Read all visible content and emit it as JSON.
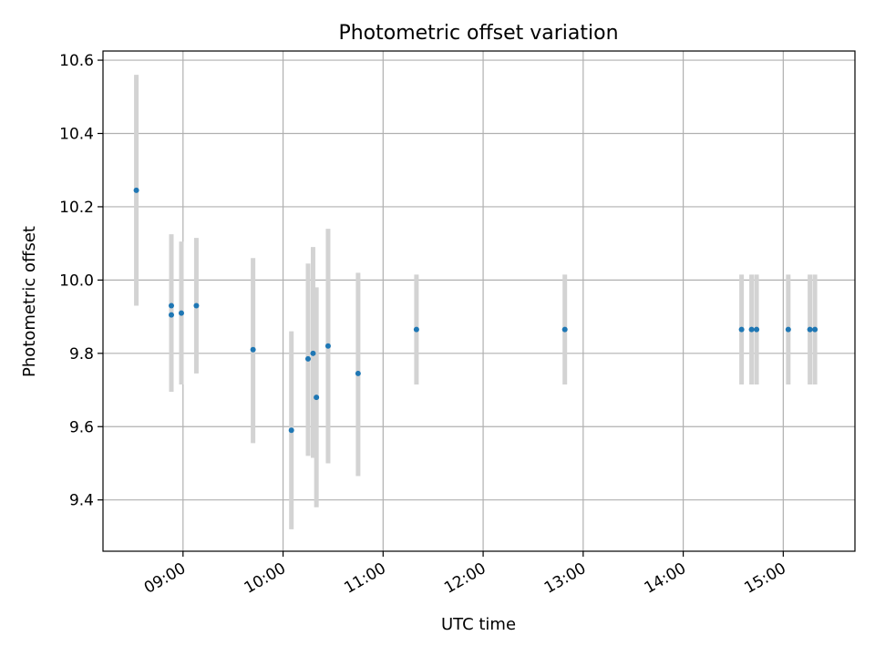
{
  "chart_data": {
    "type": "scatter",
    "title": "Photometric offset variation",
    "xlabel": "UTC time",
    "ylabel": "Photometric offset",
    "x_ticks": [
      "09:00",
      "10:00",
      "11:00",
      "12:00",
      "13:00",
      "14:00",
      "15:00"
    ],
    "y_ticks": [
      "9.4",
      "9.6",
      "9.8",
      "10.0",
      "10.2",
      "10.4",
      "10.6"
    ],
    "xlim": [
      "08:12",
      "15:43"
    ],
    "ylim": [
      9.26,
      10.625
    ],
    "grid": true,
    "point_color": "#1f77b4",
    "errorbar_color": "#d3d3d3",
    "points": [
      {
        "x": "08:32",
        "y": 10.245,
        "ylo": 9.93,
        "yhi": 10.56
      },
      {
        "x": "08:53",
        "y": 9.93,
        "ylo": 9.73,
        "yhi": 10.125
      },
      {
        "x": "08:53",
        "y": 9.905,
        "ylo": 9.695,
        "yhi": 10.115
      },
      {
        "x": "08:59",
        "y": 9.91,
        "ylo": 9.715,
        "yhi": 10.105
      },
      {
        "x": "09:08",
        "y": 9.93,
        "ylo": 9.745,
        "yhi": 10.115
      },
      {
        "x": "09:42",
        "y": 9.81,
        "ylo": 9.555,
        "yhi": 10.06
      },
      {
        "x": "10:05",
        "y": 9.59,
        "ylo": 9.32,
        "yhi": 9.86
      },
      {
        "x": "10:15",
        "y": 9.785,
        "ylo": 9.52,
        "yhi": 10.045
      },
      {
        "x": "10:18",
        "y": 9.8,
        "ylo": 9.515,
        "yhi": 10.09
      },
      {
        "x": "10:20",
        "y": 9.68,
        "ylo": 9.38,
        "yhi": 9.98
      },
      {
        "x": "10:27",
        "y": 9.82,
        "ylo": 9.5,
        "yhi": 10.14
      },
      {
        "x": "10:45",
        "y": 9.745,
        "ylo": 9.465,
        "yhi": 10.02
      },
      {
        "x": "11:20",
        "y": 9.865,
        "ylo": 9.715,
        "yhi": 10.015
      },
      {
        "x": "12:49",
        "y": 9.865,
        "ylo": 9.715,
        "yhi": 10.015
      },
      {
        "x": "14:35",
        "y": 9.865,
        "ylo": 9.715,
        "yhi": 10.015
      },
      {
        "x": "14:41",
        "y": 9.865,
        "ylo": 9.715,
        "yhi": 10.015
      },
      {
        "x": "14:44",
        "y": 9.865,
        "ylo": 9.715,
        "yhi": 10.015
      },
      {
        "x": "15:03",
        "y": 9.865,
        "ylo": 9.715,
        "yhi": 10.015
      },
      {
        "x": "15:16",
        "y": 9.865,
        "ylo": 9.715,
        "yhi": 10.015
      },
      {
        "x": "15:19",
        "y": 9.865,
        "ylo": 9.715,
        "yhi": 10.015
      }
    ]
  }
}
